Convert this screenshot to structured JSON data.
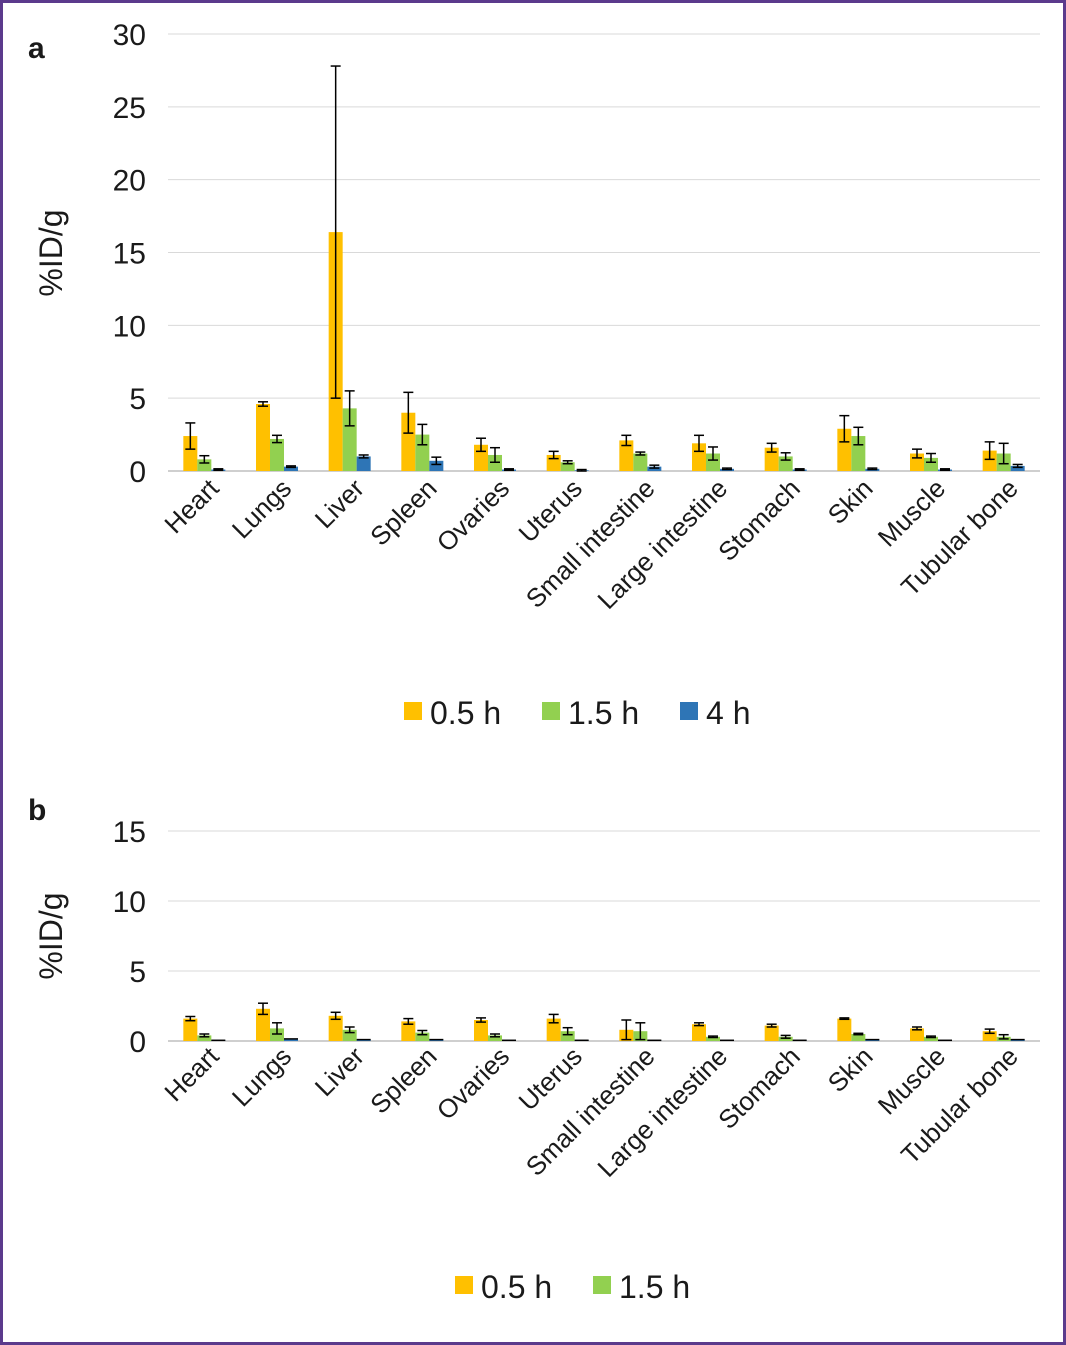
{
  "chart_data": [
    {
      "panel_label": "a",
      "type": "bar",
      "ylabel": "%ID/g",
      "ylim": [
        0,
        30
      ],
      "yticks": [
        0,
        5,
        10,
        15,
        20,
        25,
        30
      ],
      "grid": true,
      "legend_position": "bottom",
      "categories": [
        "Heart",
        "Lungs",
        "Liver",
        "Spleen",
        "Ovaries",
        "Uterus",
        "Small intestine",
        "Large intestine",
        "Stomach",
        "Skin",
        "Muscle",
        "Tubular bone"
      ],
      "series": [
        {
          "name": "0.5 h",
          "color": "#ffc000",
          "values": [
            2.4,
            4.6,
            16.4,
            4.0,
            1.8,
            1.1,
            2.1,
            1.9,
            1.6,
            2.9,
            1.2,
            1.4
          ],
          "errors": [
            0.9,
            0.15,
            11.4,
            1.4,
            0.45,
            0.25,
            0.35,
            0.55,
            0.3,
            0.9,
            0.3,
            0.6
          ]
        },
        {
          "name": "1.5 h",
          "color": "#92d050",
          "values": [
            0.8,
            2.2,
            4.3,
            2.5,
            1.1,
            0.6,
            1.2,
            1.2,
            1.0,
            2.4,
            0.9,
            1.2
          ],
          "errors": [
            0.25,
            0.25,
            1.2,
            0.7,
            0.5,
            0.1,
            0.1,
            0.45,
            0.25,
            0.6,
            0.3,
            0.7
          ]
        },
        {
          "name": "4 h",
          "color": "#2e75b6",
          "values": [
            0.1,
            0.3,
            1.0,
            0.7,
            0.1,
            0.05,
            0.3,
            0.15,
            0.1,
            0.15,
            0.1,
            0.35
          ],
          "errors": [
            0.05,
            0.05,
            0.1,
            0.25,
            0.05,
            0.05,
            0.1,
            0.05,
            0.05,
            0.05,
            0.05,
            0.1
          ]
        }
      ]
    },
    {
      "panel_label": "b",
      "type": "bar",
      "ylabel": "%ID/g",
      "ylim": [
        0,
        15
      ],
      "yticks": [
        0,
        5,
        10,
        15
      ],
      "grid": true,
      "legend_position": "bottom",
      "categories": [
        "Heart",
        "Lungs",
        "Liver",
        "Spleen",
        "Ovaries",
        "Uterus",
        "Small intestine",
        "Large intestine",
        "Stomach",
        "Skin",
        "Muscle",
        "Tubular bone"
      ],
      "series": [
        {
          "name": "0.5 h",
          "color": "#ffc000",
          "values": [
            1.6,
            2.3,
            1.8,
            1.4,
            1.5,
            1.6,
            0.8,
            1.2,
            1.1,
            1.6,
            0.9,
            0.7
          ],
          "errors": [
            0.15,
            0.4,
            0.25,
            0.2,
            0.15,
            0.3,
            0.7,
            0.1,
            0.1,
            0.05,
            0.1,
            0.15
          ]
        },
        {
          "name": "1.5 h",
          "color": "#92d050",
          "values": [
            0.4,
            0.9,
            0.8,
            0.6,
            0.4,
            0.7,
            0.7,
            0.3,
            0.3,
            0.5,
            0.3,
            0.3
          ],
          "errors": [
            0.1,
            0.4,
            0.2,
            0.15,
            0.1,
            0.25,
            0.6,
            0.05,
            0.1,
            0.05,
            0.05,
            0.15
          ]
        },
        {
          "name": "",
          "color": "#2e75b6",
          "values": [
            0.05,
            0.15,
            0.1,
            0.1,
            0.05,
            0.05,
            0.05,
            0.05,
            0.05,
            0.1,
            0.05,
            0.1
          ],
          "errors": [
            0,
            0,
            0,
            0,
            0,
            0,
            0,
            0,
            0,
            0,
            0,
            0
          ],
          "in_legend": false
        }
      ]
    }
  ]
}
